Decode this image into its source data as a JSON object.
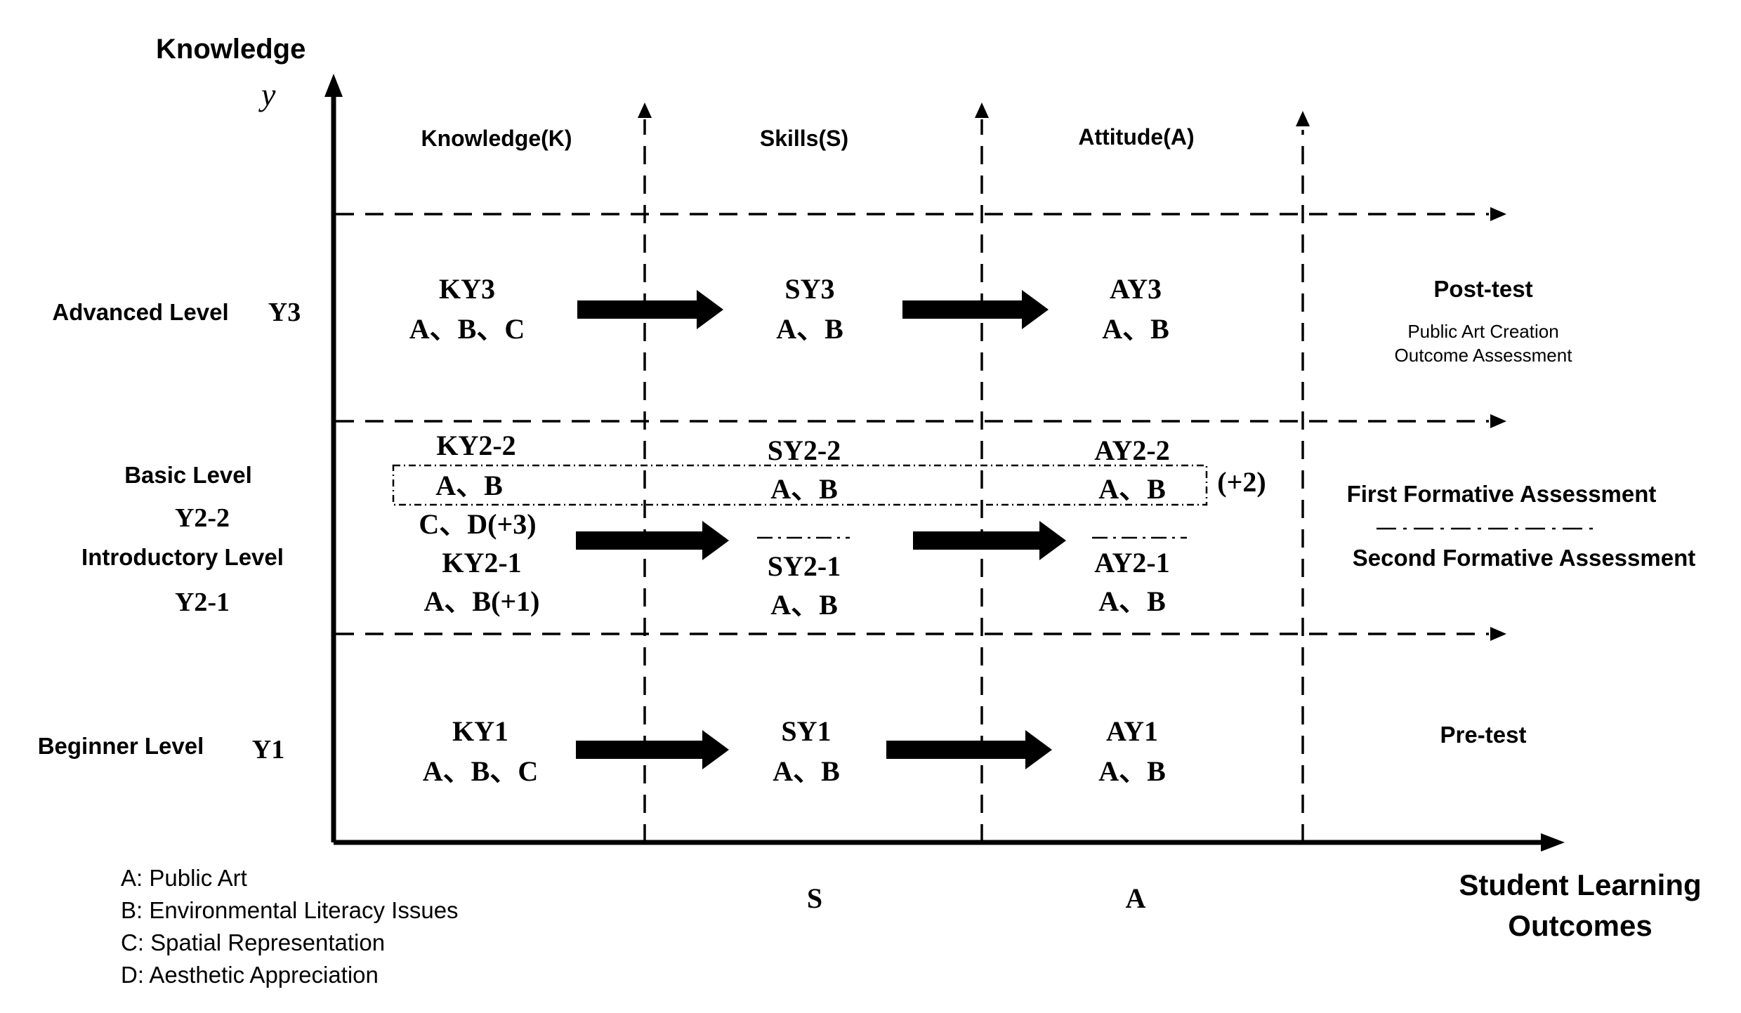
{
  "axes": {
    "y_title": "Knowledge",
    "y_symbol": "y",
    "x_title_line1": "Student Learning",
    "x_title_line2": "Outcomes"
  },
  "columns": {
    "knowledge": "Knowledge(K)",
    "skills": "Skills(S)",
    "attitude": "Attitude(A)"
  },
  "levels": {
    "advanced": {
      "label": "Advanced Level",
      "code": "Y3"
    },
    "basic": {
      "label": "Basic Level",
      "code": "Y2-2"
    },
    "introductory": {
      "label": "Introductory Level",
      "code": "Y2-1"
    },
    "beginner": {
      "label": "Beginner Level",
      "code": "Y1"
    }
  },
  "cells": {
    "ky3": {
      "code": "KY3",
      "content": "A、B、C"
    },
    "sy3": {
      "code": "SY3",
      "content": "A、B"
    },
    "ay3": {
      "code": "AY3",
      "content": "A、B"
    },
    "ky2_2": {
      "code": "KY2-2",
      "content": "A、B",
      "extra": "C、D(+3)"
    },
    "sy2_2": {
      "code": "SY2-2",
      "content": "A、B"
    },
    "ay2_2": {
      "code": "AY2-2",
      "content": "A、B",
      "extra": "(+2)"
    },
    "ky2_1": {
      "code": "KY2-1",
      "content": "A、B(+1)"
    },
    "sy2_1": {
      "code": "SY2-1",
      "content": "A、B"
    },
    "ay2_1": {
      "code": "AY2-1",
      "content": "A、B"
    },
    "ky1": {
      "code": "KY1",
      "content": "A、B、C"
    },
    "sy1": {
      "code": "SY1",
      "content": "A、B"
    },
    "ay1": {
      "code": "AY1",
      "content": "A、B"
    }
  },
  "assessments": {
    "post_test": "Post-test",
    "post_test_sub1": "Public Art Creation",
    "post_test_sub2": "Outcome Assessment",
    "first_formative": "First Formative Assessment",
    "second_formative": "Second Formative Assessment",
    "pre_test": "Pre-test"
  },
  "bottom_labels": {
    "s": "S",
    "a": "A"
  },
  "legend": [
    "A: Public Art",
    "B: Environmental Literacy Issues",
    "C: Spatial Representation",
    "D: Aesthetic Appreciation"
  ]
}
